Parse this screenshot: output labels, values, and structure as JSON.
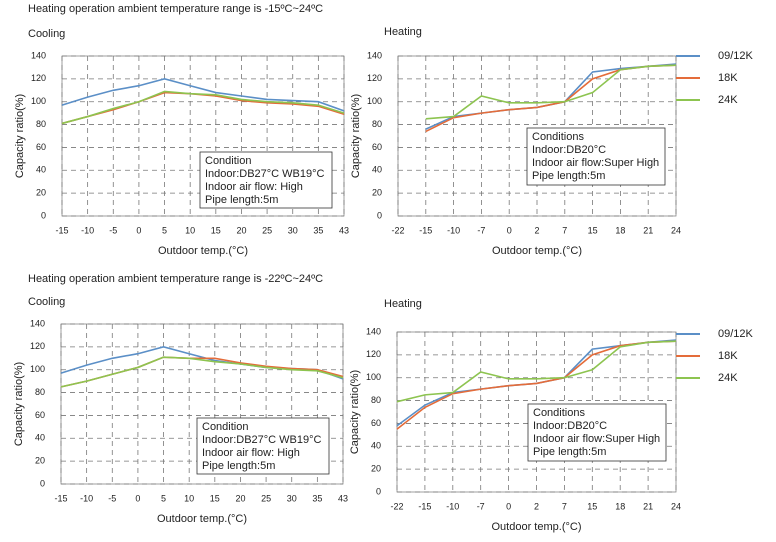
{
  "headings": [
    "Heating operation ambient temperature range is -15ºC~24ºC",
    "Heating operation ambient temperature range is -22ºC~24ºC"
  ],
  "chart_data": [
    {
      "type": "line",
      "title": "Cooling",
      "xlabel": "Outdoor temp.(°C)",
      "ylabel": "Capacity ratio(%)",
      "categories": [
        -15,
        -10,
        -5,
        0,
        5,
        10,
        15,
        20,
        25,
        30,
        35,
        43
      ],
      "ylim": [
        0,
        140
      ],
      "yticks": [
        0,
        20,
        40,
        60,
        80,
        100,
        120,
        140
      ],
      "grid": true,
      "annotation": [
        "Condition",
        "Indoor:DB27°C WB19°C",
        "Indoor air flow: High",
        "Pipe length:5m"
      ],
      "series": [
        {
          "color": "#5b8fc7",
          "values": [
            97,
            104,
            110,
            114,
            120,
            114,
            108,
            105,
            102,
            101,
            100,
            92
          ]
        },
        {
          "color": "#e46c3a",
          "values": [
            81,
            87,
            93,
            100,
            108,
            107,
            105,
            101,
            99,
            98,
            96,
            89
          ]
        },
        {
          "color": "#8dc450",
          "values": [
            81,
            87,
            94,
            100,
            109,
            107,
            106,
            102,
            100,
            99,
            97,
            90
          ]
        }
      ]
    },
    {
      "type": "line",
      "title": "Heating",
      "xlabel": "Outdoor temp.(°C)",
      "ylabel": "Capacity ratio(%)",
      "categories": [
        -22,
        -15,
        -10,
        -7,
        0,
        2,
        7,
        15,
        18,
        21,
        24
      ],
      "ylim": [
        0,
        140
      ],
      "yticks": [
        0,
        20,
        40,
        60,
        80,
        100,
        120,
        140
      ],
      "grid": true,
      "legend": "right",
      "annotation": [
        "Conditions",
        "Indoor:DB20°C",
        "Indoor air flow:Super High",
        "Pipe length:5m"
      ],
      "series": [
        {
          "name": "09/12K",
          "color": "#5b8fc7",
          "values": [
            null,
            76,
            87,
            90,
            93,
            95,
            100,
            126,
            129,
            131,
            133
          ]
        },
        {
          "name": "18K",
          "color": "#e46c3a",
          "values": [
            null,
            74,
            86,
            90,
            93,
            95,
            100,
            120,
            128,
            131,
            132
          ]
        },
        {
          "name": "24K",
          "color": "#8dc450",
          "values": [
            null,
            85,
            87,
            105,
            99,
            99,
            100,
            108,
            128,
            131,
            132
          ]
        }
      ]
    },
    {
      "type": "line",
      "title": "Cooling",
      "xlabel": "Outdoor temp.(°C)",
      "ylabel": "Capacity ratio(%)",
      "categories": [
        -15,
        -10,
        -5,
        0,
        5,
        10,
        15,
        20,
        25,
        30,
        35,
        43
      ],
      "ylim": [
        0,
        140
      ],
      "yticks": [
        0,
        20,
        40,
        60,
        80,
        100,
        120,
        140
      ],
      "grid": true,
      "annotation": [
        "Condition",
        "Indoor:DB27°C WB19°C",
        "Indoor air flow: High",
        "Pipe length:5m"
      ],
      "series": [
        {
          "color": "#5b8fc7",
          "values": [
            97,
            104,
            110,
            114,
            120,
            114,
            108,
            105,
            102,
            101,
            100,
            92
          ]
        },
        {
          "color": "#e46c3a",
          "values": [
            85,
            90,
            96,
            102,
            111,
            110,
            110,
            106,
            103,
            101,
            100,
            94
          ]
        },
        {
          "color": "#8dc450",
          "values": [
            85,
            90,
            96,
            102,
            111,
            110,
            107,
            105,
            102,
            100,
            99,
            93
          ]
        }
      ]
    },
    {
      "type": "line",
      "title": "Heating",
      "xlabel": "Outdoor temp.(°C)",
      "ylabel": "Capacity ratio(%)",
      "categories": [
        -22,
        -15,
        -10,
        -7,
        0,
        2,
        7,
        15,
        18,
        21,
        24
      ],
      "ylim": [
        0,
        140
      ],
      "yticks": [
        0,
        20,
        40,
        60,
        80,
        100,
        120,
        140
      ],
      "grid": true,
      "legend": "right",
      "annotation": [
        "Conditions",
        "Indoor:DB20°C",
        "Indoor air flow:Super High",
        "Pipe length:5m"
      ],
      "series": [
        {
          "name": "09/12K",
          "color": "#5b8fc7",
          "values": [
            58,
            76,
            87,
            90,
            93,
            95,
            100,
            125,
            128,
            131,
            133
          ]
        },
        {
          "name": "18K",
          "color": "#e46c3a",
          "values": [
            55,
            74,
            86,
            90,
            93,
            95,
            100,
            120,
            128,
            131,
            132
          ]
        },
        {
          "name": "24K",
          "color": "#8dc450",
          "values": [
            79,
            85,
            87,
            105,
            99,
            99,
            100,
            107,
            127,
            131,
            132
          ]
        }
      ]
    }
  ]
}
